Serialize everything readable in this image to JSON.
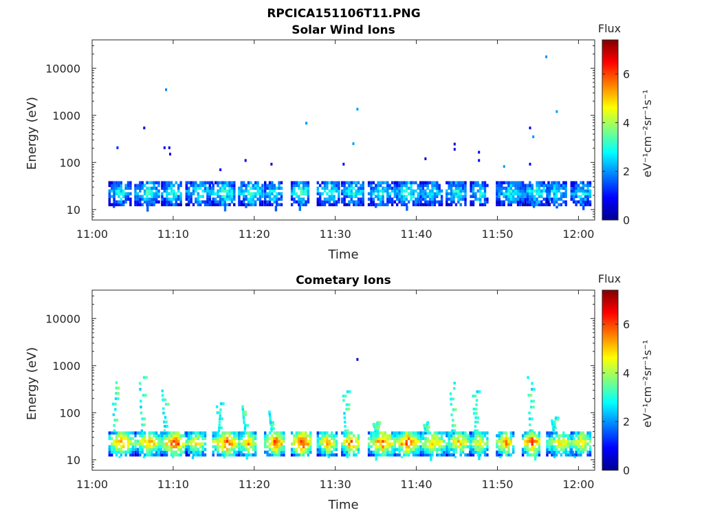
{
  "figure_title": "RPCICA151106T11.PNG",
  "chart_data": [
    {
      "type": "heatmap",
      "title": "Solar Wind Ions",
      "xlabel": "Time",
      "ylabel": "Energy (eV)",
      "x_ticks": [
        "11:00",
        "11:10",
        "11:20",
        "11:30",
        "11:40",
        "11:50",
        "12:00"
      ],
      "y_ticks": [
        "10",
        "100",
        "1000",
        "10000"
      ],
      "y_scale": "log",
      "y_range_eV": [
        6,
        40000
      ],
      "x_range_min": [
        0,
        62
      ],
      "colorbar": {
        "title": "Flux",
        "label": "eV⁻¹cm⁻²sr⁻¹s⁻¹",
        "range": [
          0,
          7.4
        ],
        "ticks": [
          "0",
          "2",
          "4",
          "6"
        ],
        "colormap": "jet"
      },
      "scans_min": [
        3,
        6.2,
        9.5,
        12.5,
        15.8,
        19,
        22.2,
        25.5,
        28.7,
        31.7,
        35,
        38.2,
        41.4,
        44.6,
        47.6,
        50.8,
        54,
        57,
        60
      ],
      "scan_core_flux": [
        2.9,
        3.2,
        3.3,
        3.0,
        3.4,
        3.3,
        3.0,
        3.5,
        3.2,
        3.0,
        3.1,
        3.2,
        2.8,
        3.0,
        2.9,
        3.0,
        3.1,
        2.9,
        2.9
      ],
      "scan_core_energy_eV": [
        12,
        40
      ],
      "sparse_points": [
        {
          "t": 3.0,
          "e": 205,
          "v": 1.2
        },
        {
          "t": 6.3,
          "e": 540,
          "v": 0.7
        },
        {
          "t": 9.0,
          "e": 3500,
          "v": 1.9
        },
        {
          "t": 8.8,
          "e": 205,
          "v": 0.8
        },
        {
          "t": 9.4,
          "e": 205,
          "v": 0.8
        },
        {
          "t": 9.5,
          "e": 150,
          "v": 0.9
        },
        {
          "t": 15.7,
          "e": 70,
          "v": 0.9
        },
        {
          "t": 18.8,
          "e": 110,
          "v": 0.8
        },
        {
          "t": 22.0,
          "e": 92,
          "v": 0.8
        },
        {
          "t": 26.3,
          "e": 680,
          "v": 2.0
        },
        {
          "t": 30.9,
          "e": 92,
          "v": 0.8
        },
        {
          "t": 32.1,
          "e": 250,
          "v": 2.1
        },
        {
          "t": 32.6,
          "e": 1350,
          "v": 2.1
        },
        {
          "t": 41.0,
          "e": 120,
          "v": 0.7
        },
        {
          "t": 44.6,
          "e": 245,
          "v": 0.8
        },
        {
          "t": 44.6,
          "e": 190,
          "v": 0.8
        },
        {
          "t": 47.6,
          "e": 165,
          "v": 0.9
        },
        {
          "t": 47.6,
          "e": 110,
          "v": 0.9
        },
        {
          "t": 50.7,
          "e": 82,
          "v": 2.1
        },
        {
          "t": 53.9,
          "e": 540,
          "v": 0.8
        },
        {
          "t": 54.3,
          "e": 350,
          "v": 2.0
        },
        {
          "t": 53.9,
          "e": 92,
          "v": 0.9
        },
        {
          "t": 55.9,
          "e": 17500,
          "v": 2.0
        },
        {
          "t": 57.2,
          "e": 1200,
          "v": 2.1
        }
      ]
    },
    {
      "type": "heatmap",
      "title": "Cometary Ions",
      "xlabel": "Time",
      "ylabel": "Energy (eV)",
      "x_ticks": [
        "11:00",
        "11:10",
        "11:20",
        "11:30",
        "11:40",
        "11:50",
        "12:00"
      ],
      "y_ticks": [
        "10",
        "100",
        "1000",
        "10000"
      ],
      "y_scale": "log",
      "y_range_eV": [
        6,
        40000
      ],
      "x_range_min": [
        0,
        62
      ],
      "colorbar": {
        "title": "Flux",
        "label": "eV⁻¹cm⁻²sr⁻¹s⁻¹",
        "range": [
          0,
          7.4
        ],
        "ticks": [
          "0",
          "2",
          "4",
          "6"
        ],
        "colormap": "jet"
      },
      "scans_min": [
        3,
        6.2,
        9.5,
        12.5,
        15.8,
        19,
        22.2,
        25.5,
        28.7,
        31.7,
        35,
        38.2,
        41.4,
        44.6,
        47.6,
        50.8,
        54,
        57,
        60
      ],
      "scan_core_flux": [
        5.6,
        5.4,
        6.3,
        5.0,
        6.1,
        5.6,
        6.2,
        6.6,
        5.4,
        5.9,
        6.0,
        6.3,
        5.4,
        5.3,
        5.2,
        5.6,
        6.4,
        5.0,
        5.2
      ],
      "scan_core_energy_eV": [
        12,
        40
      ],
      "tails": [
        {
          "t": 2.6,
          "e_top": 420
        },
        {
          "t": 6.0,
          "e_top": 540
        },
        {
          "t": 8.8,
          "e_top": 280
        },
        {
          "t": 15.5,
          "e_top": 150
        },
        {
          "t": 18.7,
          "e_top": 130
        },
        {
          "t": 22.0,
          "e_top": 100
        },
        {
          "t": 31.1,
          "e_top": 270
        },
        {
          "t": 34.8,
          "e_top": 60
        },
        {
          "t": 41.0,
          "e_top": 60
        },
        {
          "t": 44.3,
          "e_top": 410
        },
        {
          "t": 47.1,
          "e_top": 270
        },
        {
          "t": 53.9,
          "e_top": 540
        },
        {
          "t": 56.8,
          "e_top": 75
        }
      ],
      "sparse_points": [
        {
          "t": 32.6,
          "e": 1350,
          "v": 0.6
        }
      ]
    }
  ]
}
